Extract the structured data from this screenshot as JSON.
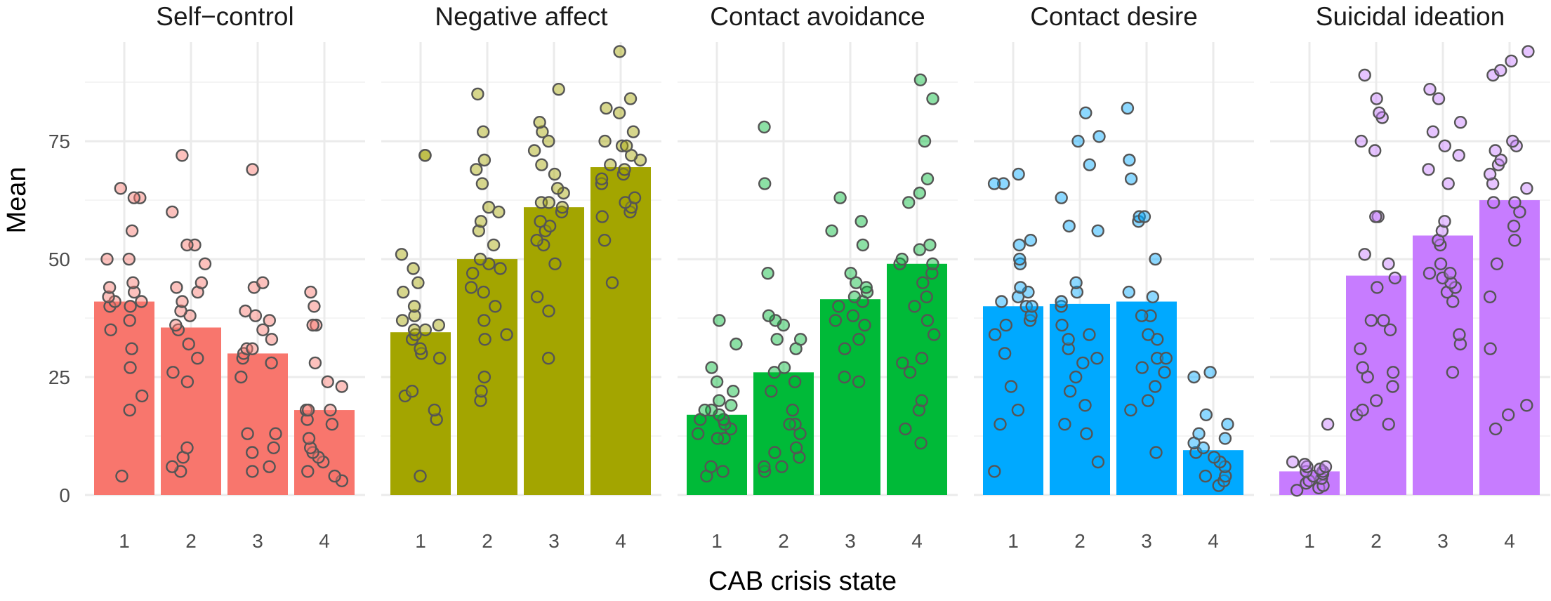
{
  "chart_data": {
    "type": "bar",
    "xlabel": "CAB crisis state",
    "ylabel": "Mean",
    "categories": [
      "1",
      "2",
      "3",
      "4"
    ],
    "ylim": [
      0,
      96
    ],
    "yticks": [
      0,
      25,
      50,
      75
    ],
    "ytick_labels": [
      "0",
      "25",
      "50",
      "75"
    ],
    "grid": true,
    "legend": "none",
    "panels": [
      {
        "title": "Self−control",
        "color": "#F8766D",
        "values": [
          41,
          35.5,
          30,
          18
        ],
        "points": [
          [
            4,
            18,
            21,
            27,
            31,
            35,
            37,
            40,
            40,
            41,
            41,
            42,
            43,
            44,
            45,
            50,
            50,
            56,
            63,
            63,
            65
          ],
          [
            5,
            6,
            8,
            10,
            24,
            26,
            29,
            32,
            35,
            36,
            38,
            39,
            41,
            43,
            44,
            45,
            49,
            53,
            53,
            60,
            72
          ],
          [
            5,
            6,
            9,
            10,
            13,
            13,
            25,
            28,
            29,
            30,
            31,
            31,
            33,
            35,
            37,
            38,
            39,
            44,
            45,
            69
          ],
          [
            3,
            4,
            5,
            7,
            8,
            9,
            10,
            12,
            15,
            16,
            18,
            18,
            18,
            23,
            24,
            28,
            36,
            36,
            40,
            43
          ]
        ]
      },
      {
        "title": "Negative affect",
        "color": "#A3A500",
        "values": [
          34.5,
          50,
          61,
          69.5
        ],
        "points": [
          [
            4,
            16,
            18,
            21,
            22,
            29,
            30,
            31,
            33,
            34,
            35,
            35,
            36,
            37,
            38,
            40,
            43,
            45,
            48,
            51,
            72,
            72
          ],
          [
            20,
            22,
            25,
            33,
            34,
            37,
            40,
            43,
            44,
            47,
            48,
            49,
            50,
            53,
            56,
            58,
            60,
            61,
            66,
            69,
            71,
            77,
            85
          ],
          [
            29,
            39,
            42,
            49,
            53,
            54,
            56,
            57,
            58,
            60,
            61,
            62,
            62,
            64,
            65,
            68,
            70,
            73,
            75,
            77,
            79,
            86
          ],
          [
            45,
            54,
            59,
            60,
            61,
            62,
            63,
            66,
            67,
            68,
            69,
            70,
            71,
            72,
            74,
            74,
            75,
            77,
            81,
            82,
            84,
            94
          ]
        ]
      },
      {
        "title": "Contact avoidance",
        "color": "#00BA38",
        "values": [
          17,
          26,
          41.5,
          49
        ],
        "points": [
          [
            4,
            5,
            6,
            12,
            12,
            13,
            14,
            15,
            16,
            16,
            17,
            18,
            18,
            19,
            20,
            22,
            24,
            27,
            32,
            37
          ],
          [
            5,
            6,
            6,
            8,
            9,
            10,
            13,
            15,
            15,
            18,
            22,
            24,
            26,
            27,
            31,
            33,
            33,
            36,
            37,
            38,
            47,
            66,
            78
          ],
          [
            24,
            25,
            31,
            33,
            36,
            37,
            38,
            40,
            41,
            42,
            43,
            44,
            45,
            47,
            53,
            56,
            58,
            63
          ],
          [
            11,
            14,
            18,
            20,
            26,
            28,
            29,
            34,
            37,
            40,
            42,
            45,
            47,
            49,
            49,
            50,
            52,
            53,
            62,
            64,
            67,
            75,
            84,
            88
          ]
        ]
      },
      {
        "title": "Contact desire",
        "color": "#00A9FF",
        "values": [
          40,
          40.5,
          41,
          9.5
        ],
        "points": [
          [
            5,
            15,
            18,
            23,
            30,
            34,
            36,
            37,
            38,
            40,
            40,
            41,
            42,
            43,
            44,
            49,
            50,
            53,
            54,
            66,
            66,
            68
          ],
          [
            7,
            13,
            15,
            19,
            22,
            25,
            28,
            29,
            31,
            33,
            34,
            36,
            40,
            41,
            43,
            45,
            56,
            57,
            63,
            70,
            75,
            76,
            81
          ],
          [
            9,
            18,
            20,
            23,
            26,
            27,
            29,
            29,
            33,
            34,
            38,
            38,
            42,
            43,
            50,
            58,
            59,
            59,
            67,
            71,
            82
          ],
          [
            2,
            3,
            4,
            4,
            6,
            7,
            8,
            9,
            10,
            11,
            12,
            13,
            15,
            17,
            25,
            26
          ]
        ]
      },
      {
        "title": "Suicidal ideation",
        "color": "#C77CFF",
        "values": [
          5,
          46.5,
          55,
          62.5
        ],
        "points": [
          [
            1,
            1.5,
            2,
            2.5,
            3,
            3.5,
            4,
            4.5,
            5,
            5,
            5.5,
            6,
            6,
            6.5,
            7,
            15
          ],
          [
            15,
            17,
            18,
            20,
            23,
            25,
            26,
            27,
            31,
            35,
            37,
            37,
            44,
            46,
            49,
            51,
            59,
            59,
            73,
            75,
            80,
            81,
            84,
            89
          ],
          [
            26,
            32,
            34,
            41,
            43,
            44,
            45,
            46,
            47,
            47,
            49,
            53,
            54,
            56,
            58,
            66,
            69,
            72,
            74,
            77,
            79,
            84,
            86
          ],
          [
            14,
            17,
            19,
            31,
            42,
            49,
            54,
            57,
            60,
            62,
            62,
            65,
            66,
            68,
            70,
            71,
            73,
            74,
            75,
            89,
            90,
            92,
            94
          ]
        ]
      }
    ]
  }
}
